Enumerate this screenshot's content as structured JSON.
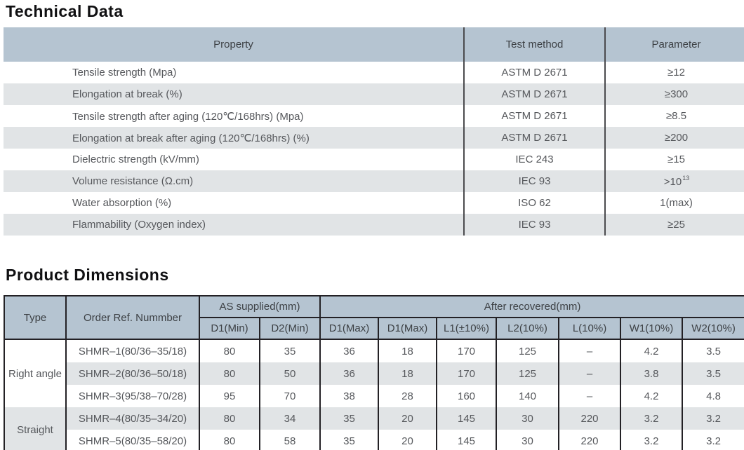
{
  "colors": {
    "header_fill": "#b5c4d1",
    "stripe_fill": "#e1e4e6",
    "divider_dark": "#4b4b4e",
    "border_black": "#232125",
    "text_body": "#56585c",
    "title_text": "#101012"
  },
  "technical": {
    "title": "Technical Data",
    "headers": {
      "property": "Property",
      "test_method": "Test method",
      "parameter": "Parameter"
    },
    "rows": [
      {
        "property": "Tensile strength (Mpa)",
        "test_method": "ASTM D 2671",
        "parameter": "≥12"
      },
      {
        "property": "Elongation at break (%)",
        "test_method": "ASTM D 2671",
        "parameter": "≥300"
      },
      {
        "property": "Tensile strength after aging (120℃/168hrs) (Mpa)",
        "test_method": "ASTM D 2671",
        "parameter": "≥8.5"
      },
      {
        "property": "Elongation at break after aging (120℃/168hrs) (%)",
        "test_method": "ASTM D 2671",
        "parameter": "≥200"
      },
      {
        "property": "Dielectric strength (kV/mm)",
        "test_method": "IEC 243",
        "parameter": "≥15"
      },
      {
        "property": "Volume resistance (Ω.cm)",
        "test_method": "IEC 93",
        "parameter": ">10",
        "parameter_sup": "13"
      },
      {
        "property": "Water absorption (%)",
        "test_method": "ISO 62",
        "parameter": "1(max)"
      },
      {
        "property": "Flammability (Oxygen index)",
        "test_method": "IEC 93",
        "parameter": "≥25"
      }
    ]
  },
  "dimensions": {
    "title": "Product Dimensions",
    "headers": {
      "type": "Type",
      "order_ref": "Order Ref. Nummber",
      "as_supplied": "AS supplied(mm)",
      "after_recovered": "After recovered(mm)",
      "sub": [
        "D1(Min)",
        "D2(Min)",
        "D1(Max)",
        "D1(Max)",
        "L1(±10%)",
        "L2(10%)",
        "L(10%)",
        "W1(10%)",
        "W2(10%)"
      ]
    },
    "groups": [
      {
        "type": "Right angle",
        "rows": [
          {
            "order_ref": "SHMR–1(80/36–35/18)",
            "values": [
              "80",
              "35",
              "36",
              "18",
              "170",
              "125",
              "–",
              "4.2",
              "3.5"
            ]
          },
          {
            "order_ref": "SHMR–2(80/36–50/18)",
            "values": [
              "80",
              "50",
              "36",
              "18",
              "170",
              "125",
              "–",
              "3.8",
              "3.5"
            ]
          },
          {
            "order_ref": "SHMR–3(95/38–70/28)",
            "values": [
              "95",
              "70",
              "38",
              "28",
              "160",
              "140",
              "–",
              "4.2",
              "4.8"
            ]
          }
        ]
      },
      {
        "type": "Straight",
        "rows": [
          {
            "order_ref": "SHMR–4(80/35–34/20)",
            "values": [
              "80",
              "34",
              "35",
              "20",
              "145",
              "30",
              "220",
              "3.2",
              "3.2"
            ]
          },
          {
            "order_ref": "SHMR–5(80/35–58/20)",
            "values": [
              "80",
              "58",
              "35",
              "20",
              "145",
              "30",
              "220",
              "3.2",
              "3.2"
            ]
          }
        ]
      }
    ]
  }
}
